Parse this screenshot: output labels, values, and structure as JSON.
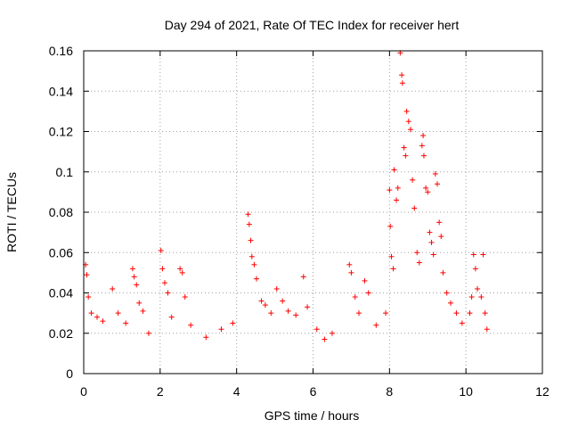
{
  "chart_data": {
    "type": "scatter",
    "title": "Day 294 of 2021, Rate Of TEC Index for receiver hert",
    "xlabel": "GPS time / hours",
    "ylabel": "ROTI / TECUs",
    "xlim": [
      0,
      12
    ],
    "ylim": [
      0,
      0.16
    ],
    "xticks": [
      0,
      2,
      4,
      6,
      8,
      10,
      12
    ],
    "xtick_labels": [
      "0",
      "2",
      "4",
      "6",
      "8",
      "10",
      "12"
    ],
    "yticks": [
      0,
      0.02,
      0.04,
      0.06,
      0.08,
      0.1,
      0.12,
      0.14,
      0.16
    ],
    "ytick_labels": [
      "0",
      "0.02",
      "0.04",
      "0.06",
      "0.08",
      "0.1",
      "0.12",
      "0.14",
      "0.16"
    ],
    "grid": true,
    "marker": "plus",
    "color": "#ff0000",
    "series": [
      {
        "points": [
          [
            0.05,
            0.054
          ],
          [
            0.08,
            0.049
          ],
          [
            0.12,
            0.038
          ],
          [
            0.2,
            0.03
          ],
          [
            0.35,
            0.028
          ],
          [
            0.5,
            0.026
          ],
          [
            0.75,
            0.042
          ],
          [
            0.9,
            0.03
          ],
          [
            1.1,
            0.025
          ],
          [
            1.28,
            0.052
          ],
          [
            1.32,
            0.048
          ],
          [
            1.38,
            0.044
          ],
          [
            1.45,
            0.035
          ],
          [
            1.55,
            0.031
          ],
          [
            1.7,
            0.02
          ],
          [
            2.02,
            0.061
          ],
          [
            2.06,
            0.052
          ],
          [
            2.12,
            0.045
          ],
          [
            2.2,
            0.04
          ],
          [
            2.3,
            0.028
          ],
          [
            2.52,
            0.052
          ],
          [
            2.58,
            0.05
          ],
          [
            2.65,
            0.038
          ],
          [
            2.8,
            0.024
          ],
          [
            3.2,
            0.018
          ],
          [
            3.6,
            0.022
          ],
          [
            3.9,
            0.025
          ],
          [
            4.3,
            0.079
          ],
          [
            4.33,
            0.074
          ],
          [
            4.37,
            0.066
          ],
          [
            4.4,
            0.058
          ],
          [
            4.46,
            0.054
          ],
          [
            4.52,
            0.047
          ],
          [
            4.65,
            0.036
          ],
          [
            4.75,
            0.034
          ],
          [
            4.9,
            0.03
          ],
          [
            5.05,
            0.042
          ],
          [
            5.2,
            0.036
          ],
          [
            5.35,
            0.031
          ],
          [
            5.55,
            0.029
          ],
          [
            5.85,
            0.033
          ],
          [
            5.75,
            0.048
          ],
          [
            6.1,
            0.022
          ],
          [
            6.3,
            0.017
          ],
          [
            6.5,
            0.02
          ],
          [
            6.95,
            0.054
          ],
          [
            7.0,
            0.05
          ],
          [
            7.1,
            0.038
          ],
          [
            7.2,
            0.03
          ],
          [
            7.35,
            0.046
          ],
          [
            7.45,
            0.04
          ],
          [
            7.65,
            0.024
          ],
          [
            7.9,
            0.03
          ],
          [
            8.0,
            0.091
          ],
          [
            8.02,
            0.073
          ],
          [
            8.05,
            0.058
          ],
          [
            8.1,
            0.052
          ],
          [
            8.12,
            0.101
          ],
          [
            8.18,
            0.086
          ],
          [
            8.22,
            0.092
          ],
          [
            8.28,
            0.159
          ],
          [
            8.32,
            0.148
          ],
          [
            8.34,
            0.144
          ],
          [
            8.38,
            0.112
          ],
          [
            8.42,
            0.108
          ],
          [
            8.45,
            0.13
          ],
          [
            8.5,
            0.125
          ],
          [
            8.55,
            0.121
          ],
          [
            8.6,
            0.096
          ],
          [
            8.65,
            0.082
          ],
          [
            8.72,
            0.06
          ],
          [
            8.78,
            0.055
          ],
          [
            8.85,
            0.113
          ],
          [
            8.88,
            0.118
          ],
          [
            8.9,
            0.108
          ],
          [
            8.95,
            0.092
          ],
          [
            9.0,
            0.09
          ],
          [
            9.05,
            0.07
          ],
          [
            9.1,
            0.065
          ],
          [
            9.15,
            0.059
          ],
          [
            9.2,
            0.099
          ],
          [
            9.25,
            0.094
          ],
          [
            9.3,
            0.075
          ],
          [
            9.35,
            0.068
          ],
          [
            9.4,
            0.05
          ],
          [
            9.5,
            0.04
          ],
          [
            9.6,
            0.035
          ],
          [
            9.75,
            0.03
          ],
          [
            9.9,
            0.025
          ],
          [
            10.1,
            0.03
          ],
          [
            10.15,
            0.038
          ],
          [
            10.2,
            0.059
          ],
          [
            10.25,
            0.052
          ],
          [
            10.3,
            0.042
          ],
          [
            10.4,
            0.038
          ],
          [
            10.45,
            0.059
          ],
          [
            10.5,
            0.03
          ],
          [
            10.55,
            0.022
          ]
        ]
      }
    ]
  }
}
